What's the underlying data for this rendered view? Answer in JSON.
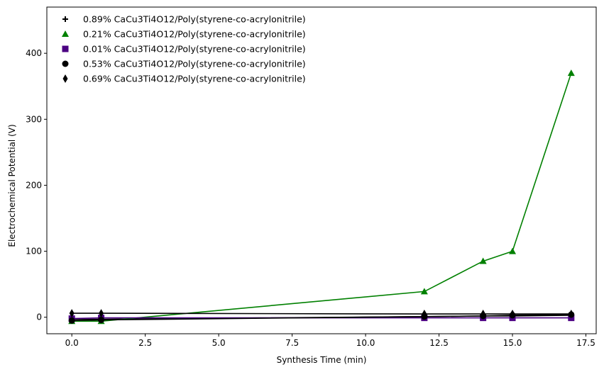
{
  "chart_data": {
    "type": "line",
    "title": "",
    "xlabel": "Synthesis Time (min)",
    "ylabel": "Electrochemical Potential (V)",
    "xlim": [
      -0.85,
      17.85
    ],
    "ylim": [
      -25,
      470
    ],
    "xticks": [
      0.0,
      2.5,
      5.0,
      7.5,
      10.0,
      12.5,
      15.0,
      17.5
    ],
    "xtick_labels": [
      "0.0",
      "2.5",
      "5.0",
      "7.5",
      "10.0",
      "12.5",
      "15.0",
      "17.5"
    ],
    "yticks": [
      0,
      100,
      200,
      300,
      400
    ],
    "ytick_labels": [
      "0",
      "100",
      "200",
      "300",
      "400"
    ],
    "grid": false,
    "legend_position": "top-left",
    "series": [
      {
        "name": "0.89% CaCu3Ti4O12/Poly(styrene-co-acrylonitrile)",
        "marker": "plus",
        "color": "#000000",
        "x": [
          0,
          1,
          12,
          14,
          15,
          17
        ],
        "y": [
          -3,
          -3,
          1,
          2,
          2,
          3
        ]
      },
      {
        "name": "0.21% CaCu3Ti4O12/Poly(styrene-co-acrylonitrile)",
        "marker": "triangle",
        "color": "#008000",
        "x": [
          0,
          1,
          12,
          14,
          15,
          17
        ],
        "y": [
          -6,
          -6,
          39,
          85,
          100,
          370
        ]
      },
      {
        "name": "0.01% CaCu3Ti4O12/Poly(styrene-co-acrylonitrile)",
        "marker": "square",
        "color": "#4b0082",
        "x": [
          0,
          1,
          12,
          14,
          15,
          17
        ],
        "y": [
          -2,
          -1,
          -1,
          -1,
          -1,
          -1
        ]
      },
      {
        "name": "0.53% CaCu3Ti4O12/Poly(styrene-co-acrylonitrile)",
        "marker": "circle",
        "color": "#000000",
        "x": [
          0,
          1,
          12,
          14,
          15,
          17
        ],
        "y": [
          -5,
          -4,
          1,
          2,
          3,
          4
        ]
      },
      {
        "name": "0.69% CaCu3Ti4O12/Poly(styrene-co-acrylonitrile)",
        "marker": "diamond",
        "color": "#000000",
        "x": [
          0,
          1,
          12,
          14,
          15,
          17
        ],
        "y": [
          6,
          6,
          5,
          5,
          5,
          5
        ]
      }
    ]
  }
}
